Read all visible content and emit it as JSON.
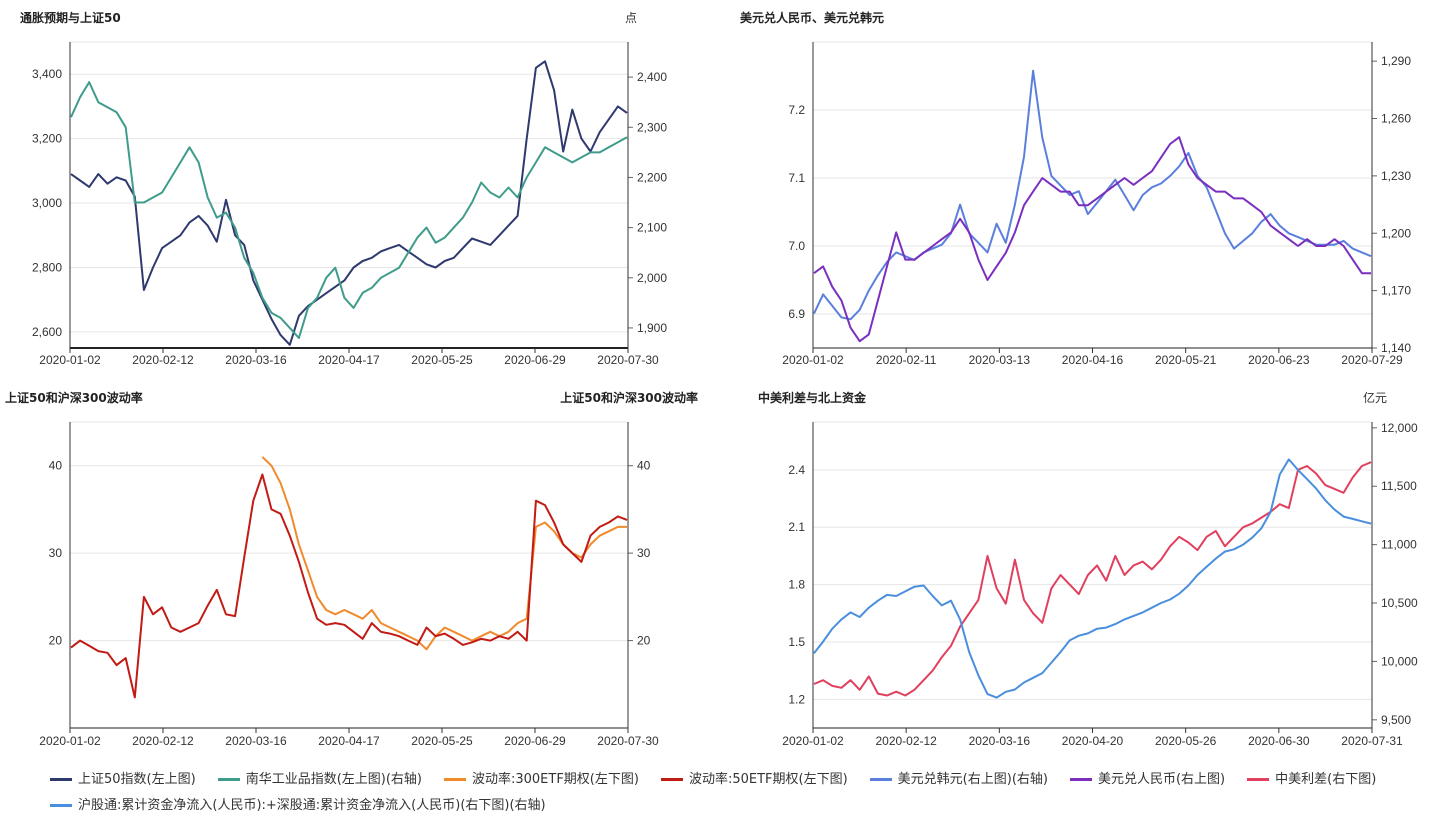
{
  "legend": [
    {
      "label": "上证50指数(左上图)",
      "color": "#2e3a6e"
    },
    {
      "label": "南华工业品指数(左上图)(右轴)",
      "color": "#3f9c8a"
    },
    {
      "label": "波动率:300ETF期权(左下图)",
      "color": "#f08a2b"
    },
    {
      "label": "波动率:50ETF期权(左下图)",
      "color": "#c21a14"
    },
    {
      "label": "美元兑韩元(右上图)(右轴)",
      "color": "#5b7fdd"
    },
    {
      "label": "美元兑人民币(右上图)",
      "color": "#7a2fbf"
    },
    {
      "label": "中美利差(右下图)",
      "color": "#e0405e"
    },
    {
      "label": "沪股通:累计资金净流入(人民币):+深股通:累计资金净流入(人民币)(右下图)(右轴)",
      "color": "#4a8fdd"
    }
  ],
  "chart_data": [
    {
      "id": "tl",
      "type": "line",
      "title": "通胀预期与上证50",
      "right_unit": "点",
      "x_ticks": [
        "2020-01-02",
        "2020-02-12",
        "2020-03-16",
        "2020-04-17",
        "2020-05-25",
        "2020-06-29",
        "2020-07-30"
      ],
      "left_axis": {
        "min": 2550,
        "max": 3500,
        "ticks": [
          2600,
          2800,
          3000,
          3200,
          3400
        ],
        "labels": [
          "2,600",
          "2,800",
          "3,000",
          "3,200",
          "3,400"
        ]
      },
      "right_axis": {
        "min": 1860,
        "max": 2470,
        "ticks": [
          1900,
          2000,
          2100,
          2200,
          2300,
          2400
        ],
        "labels": [
          "1,900",
          "2,000",
          "2,100",
          "2,200",
          "2,300",
          "2,400"
        ]
      },
      "series": [
        {
          "name": "上证50指数",
          "axis": "left",
          "color": "#2e3a6e",
          "values": [
            3090,
            3070,
            3050,
            3090,
            3060,
            3080,
            3070,
            3020,
            2730,
            2800,
            2860,
            2880,
            2900,
            2940,
            2960,
            2930,
            2880,
            3010,
            2900,
            2870,
            2760,
            2700,
            2640,
            2590,
            2560,
            2650,
            2680,
            2700,
            2720,
            2740,
            2760,
            2800,
            2820,
            2830,
            2850,
            2860,
            2870,
            2850,
            2830,
            2810,
            2800,
            2820,
            2830,
            2860,
            2890,
            2880,
            2870,
            2900,
            2930,
            2960,
            3200,
            3420,
            3440,
            3350,
            3160,
            3290,
            3200,
            3160,
            3220,
            3260,
            3300,
            3280
          ]
        },
        {
          "name": "南华工业品指数",
          "axis": "right",
          "color": "#3f9c8a",
          "values": [
            2320,
            2360,
            2390,
            2350,
            2340,
            2330,
            2300,
            2150,
            2150,
            2160,
            2170,
            2200,
            2230,
            2260,
            2230,
            2160,
            2120,
            2130,
            2100,
            2040,
            2010,
            1960,
            1930,
            1920,
            1900,
            1880,
            1940,
            1960,
            2000,
            2020,
            1960,
            1940,
            1970,
            1980,
            2000,
            2010,
            2020,
            2050,
            2080,
            2100,
            2070,
            2080,
            2100,
            2120,
            2150,
            2190,
            2170,
            2160,
            2180,
            2160,
            2200,
            2230,
            2260,
            2250,
            2240,
            2230,
            2240,
            2250,
            2250,
            2260,
            2270,
            2280
          ]
        }
      ]
    },
    {
      "id": "tr",
      "type": "line",
      "title": "美元兑人民币、美元兑韩元",
      "x_ticks": [
        "2020-01-02",
        "2020-02-11",
        "2020-03-13",
        "2020-04-16",
        "2020-05-21",
        "2020-06-23",
        "2020-07-29"
      ],
      "left_axis": {
        "min": 6.85,
        "max": 7.3,
        "ticks": [
          6.9,
          7.0,
          7.1,
          7.2
        ],
        "labels": [
          "6.9",
          "7.0",
          "7.1",
          "7.2"
        ]
      },
      "right_axis": {
        "min": 1140,
        "max": 1300,
        "ticks": [
          1140,
          1170,
          1200,
          1230,
          1260,
          1290
        ],
        "labels": [
          "1,140",
          "1,170",
          "1,200",
          "1,230",
          "1,260",
          "1,290"
        ]
      },
      "series": [
        {
          "name": "美元兑韩元",
          "axis": "right",
          "color": "#5b7fdd",
          "values": [
            1158,
            1168,
            1162,
            1156,
            1155,
            1160,
            1170,
            1178,
            1185,
            1190,
            1188,
            1186,
            1190,
            1192,
            1194,
            1200,
            1215,
            1200,
            1195,
            1190,
            1205,
            1195,
            1215,
            1240,
            1285,
            1250,
            1230,
            1225,
            1220,
            1222,
            1210,
            1216,
            1222,
            1228,
            1220,
            1212,
            1220,
            1224,
            1226,
            1230,
            1235,
            1242,
            1230,
            1224,
            1212,
            1200,
            1192,
            1196,
            1200,
            1206,
            1210,
            1204,
            1200,
            1198,
            1196,
            1194,
            1194,
            1194,
            1196,
            1192,
            1190,
            1188
          ]
        },
        {
          "name": "美元兑人民币",
          "axis": "left",
          "color": "#7a2fbf",
          "values": [
            6.96,
            6.97,
            6.94,
            6.92,
            6.88,
            6.86,
            6.87,
            6.92,
            6.97,
            7.02,
            6.98,
            6.98,
            6.99,
            7.0,
            7.01,
            7.02,
            7.04,
            7.02,
            6.98,
            6.95,
            6.97,
            6.99,
            7.02,
            7.06,
            7.08,
            7.1,
            7.09,
            7.08,
            7.08,
            7.06,
            7.06,
            7.07,
            7.08,
            7.09,
            7.1,
            7.09,
            7.1,
            7.11,
            7.13,
            7.15,
            7.16,
            7.12,
            7.1,
            7.09,
            7.08,
            7.08,
            7.07,
            7.07,
            7.06,
            7.05,
            7.03,
            7.02,
            7.01,
            7.0,
            7.01,
            7.0,
            7.0,
            7.01,
            7.0,
            6.98,
            6.96,
            6.96
          ]
        }
      ]
    },
    {
      "id": "bl",
      "type": "line",
      "title": "上证50和沪深300波动率",
      "right_title": "上证50和沪深300波动率",
      "x_ticks": [
        "2020-01-02",
        "2020-02-12",
        "2020-03-16",
        "2020-04-17",
        "2020-05-25",
        "2020-06-29",
        "2020-07-30"
      ],
      "left_axis": {
        "min": 10,
        "max": 45,
        "ticks": [
          20,
          30,
          40
        ],
        "labels": [
          "20",
          "30",
          "40"
        ]
      },
      "right_axis": {
        "min": 10,
        "max": 45,
        "ticks": [
          20,
          30,
          40
        ],
        "labels": [
          "20",
          "30",
          "40"
        ]
      },
      "series": [
        {
          "name": "波动率:300ETF期权",
          "axis": "left",
          "color": "#f08a2b",
          "values": [
            null,
            null,
            null,
            null,
            null,
            null,
            null,
            null,
            null,
            null,
            null,
            null,
            null,
            null,
            null,
            null,
            null,
            null,
            null,
            null,
            null,
            41.0,
            40.0,
            38.0,
            35.0,
            31.0,
            28.0,
            25.0,
            23.5,
            23.0,
            23.5,
            23.0,
            22.5,
            23.5,
            22.0,
            21.5,
            21.0,
            20.5,
            20.0,
            19.0,
            20.5,
            21.5,
            21.0,
            20.5,
            20.0,
            20.5,
            21.0,
            20.5,
            21.0,
            22.0,
            22.5,
            33.0,
            33.5,
            32.5,
            31.0,
            30.0,
            29.5,
            31.0,
            32.0,
            32.5,
            33.0,
            33.0
          ]
        },
        {
          "name": "波动率:50ETF期权",
          "axis": "left",
          "color": "#c21a14",
          "values": [
            19.2,
            20.0,
            19.4,
            18.8,
            18.6,
            17.2,
            18.0,
            13.5,
            25.0,
            23.0,
            23.8,
            21.5,
            21.0,
            21.5,
            22.0,
            24.0,
            25.8,
            23.0,
            22.8,
            29.5,
            36.0,
            39.0,
            35.0,
            34.5,
            32.0,
            29.0,
            25.5,
            22.5,
            21.8,
            22.0,
            21.8,
            21.0,
            20.2,
            22.0,
            21.0,
            20.8,
            20.5,
            20.0,
            19.5,
            21.5,
            20.5,
            20.8,
            20.2,
            19.5,
            19.8,
            20.2,
            20.0,
            20.5,
            20.2,
            21.0,
            20.0,
            36.0,
            35.5,
            33.5,
            31.0,
            30.0,
            29.0,
            32.0,
            33.0,
            33.5,
            34.2,
            33.8
          ]
        }
      ]
    },
    {
      "id": "br",
      "type": "line",
      "title": "中美利差与北上资金",
      "right_unit": "亿元",
      "x_ticks": [
        "2020-01-02",
        "2020-02-12",
        "2020-03-16",
        "2020-04-20",
        "2020-05-26",
        "2020-06-30",
        "2020-07-31"
      ],
      "left_axis": {
        "min": 1.05,
        "max": 2.65,
        "ticks": [
          1.2,
          1.5,
          1.8,
          2.1,
          2.4
        ],
        "labels": [
          "1.2",
          "1.5",
          "1.8",
          "2.1",
          "2.4"
        ]
      },
      "right_axis": {
        "min": 9430,
        "max": 12050,
        "ticks": [
          9500,
          10000,
          10500,
          11000,
          11500,
          12000
        ],
        "labels": [
          "9,500",
          "10,000",
          "10,500",
          "11,000",
          "11,500",
          "12,000"
        ]
      },
      "series": [
        {
          "name": "中美利差",
          "axis": "left",
          "color": "#e0405e",
          "values": [
            1.28,
            1.3,
            1.27,
            1.26,
            1.3,
            1.25,
            1.32,
            1.23,
            1.22,
            1.24,
            1.22,
            1.25,
            1.3,
            1.35,
            1.42,
            1.48,
            1.58,
            1.65,
            1.72,
            1.95,
            1.78,
            1.7,
            1.93,
            1.72,
            1.65,
            1.6,
            1.78,
            1.85,
            1.8,
            1.75,
            1.85,
            1.9,
            1.82,
            1.95,
            1.85,
            1.9,
            1.92,
            1.88,
            1.93,
            2.0,
            2.05,
            2.02,
            1.98,
            2.05,
            2.08,
            2.0,
            2.05,
            2.1,
            2.12,
            2.15,
            2.18,
            2.22,
            2.2,
            2.4,
            2.42,
            2.38,
            2.32,
            2.3,
            2.28,
            2.36,
            2.42,
            2.44
          ]
        },
        {
          "name": "沪股通:累计资金净流入",
          "axis": "right",
          "color": "#4a8fdd",
          "values": [
            10070,
            10170,
            10280,
            10360,
            10420,
            10380,
            10460,
            10520,
            10570,
            10560,
            10600,
            10640,
            10650,
            10560,
            10480,
            10520,
            10360,
            10080,
            9880,
            9720,
            9690,
            9740,
            9760,
            9820,
            9860,
            9900,
            9990,
            10080,
            10180,
            10220,
            10240,
            10280,
            10290,
            10320,
            10360,
            10390,
            10420,
            10460,
            10500,
            10530,
            10580,
            10650,
            10740,
            10810,
            10880,
            10940,
            10960,
            11000,
            11060,
            11140,
            11280,
            11600,
            11730,
            11640,
            11560,
            11480,
            11380,
            11300,
            11240,
            11220,
            11200,
            11180
          ]
        }
      ]
    }
  ]
}
